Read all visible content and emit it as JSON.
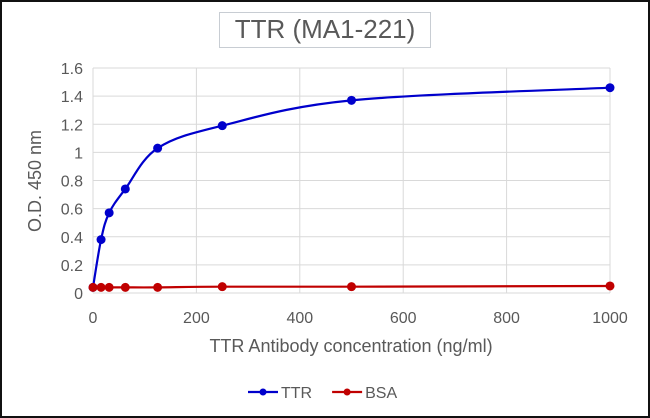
{
  "chart_data": {
    "type": "line",
    "title": "TTR (MA1-221)",
    "xlabel": "TTR Antibody concentration (ng/ml)",
    "ylabel": "O.D. 450 nm",
    "xlim": [
      0,
      1000
    ],
    "ylim": [
      0,
      1.6
    ],
    "x_ticks": [
      "0",
      "200",
      "400",
      "600",
      "800",
      "1000"
    ],
    "y_ticks": [
      "0",
      "0.2",
      "0.4",
      "0.6",
      "0.8",
      "1",
      "1.2",
      "1.4",
      "1.6"
    ],
    "grid": true,
    "legend_position": "bottom",
    "series": [
      {
        "name": "TTR",
        "color": "#0000cc",
        "x": [
          0,
          15.6,
          31.25,
          62.5,
          125,
          250,
          500,
          1000
        ],
        "values": [
          0.04,
          0.38,
          0.57,
          0.74,
          1.03,
          1.19,
          1.37,
          1.46
        ]
      },
      {
        "name": "BSA",
        "color": "#c00000",
        "x": [
          0,
          15.6,
          31.25,
          62.5,
          125,
          250,
          500,
          1000
        ],
        "values": [
          0.04,
          0.04,
          0.04,
          0.04,
          0.04,
          0.045,
          0.045,
          0.05
        ]
      }
    ]
  }
}
